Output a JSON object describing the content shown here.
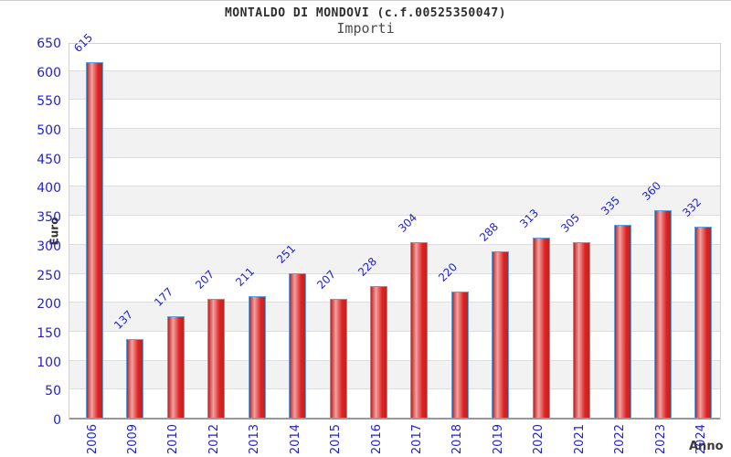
{
  "header": {
    "title": "MONTALDO DI MONDOVI (c.f.00525350047)",
    "subtitle": "Importi"
  },
  "chart_data": {
    "type": "bar",
    "title": "MONTALDO DI MONDOVI (c.f.00525350047)",
    "subtitle": "Importi",
    "categories": [
      "2006",
      "2009",
      "2010",
      "2012",
      "2013",
      "2014",
      "2015",
      "2016",
      "2017",
      "2018",
      "2019",
      "2020",
      "2021",
      "2022",
      "2023",
      "2024"
    ],
    "values": [
      615,
      137,
      177,
      207,
      211,
      251,
      207,
      228,
      304,
      220,
      288,
      313,
      305,
      335,
      360,
      332
    ],
    "xlabel": "Anno",
    "ylabel": "Euro",
    "ylim": [
      0,
      650
    ],
    "ytick_step": 50,
    "grid": true,
    "legend": false,
    "colors": {
      "tick_label": "#2222cc",
      "value_label": "#2222cc",
      "bar_border": "#5e9fdd",
      "bar_gradient_edge": "#bb2424",
      "bar_gradient_mid_light": "#f0a2a2",
      "bar_gradient_body": "#e02222",
      "band_gray": "#f2f2f2",
      "grid_line": "#dddddd",
      "axis_line": "#999999",
      "plot_border": "#d2d2d2"
    }
  }
}
